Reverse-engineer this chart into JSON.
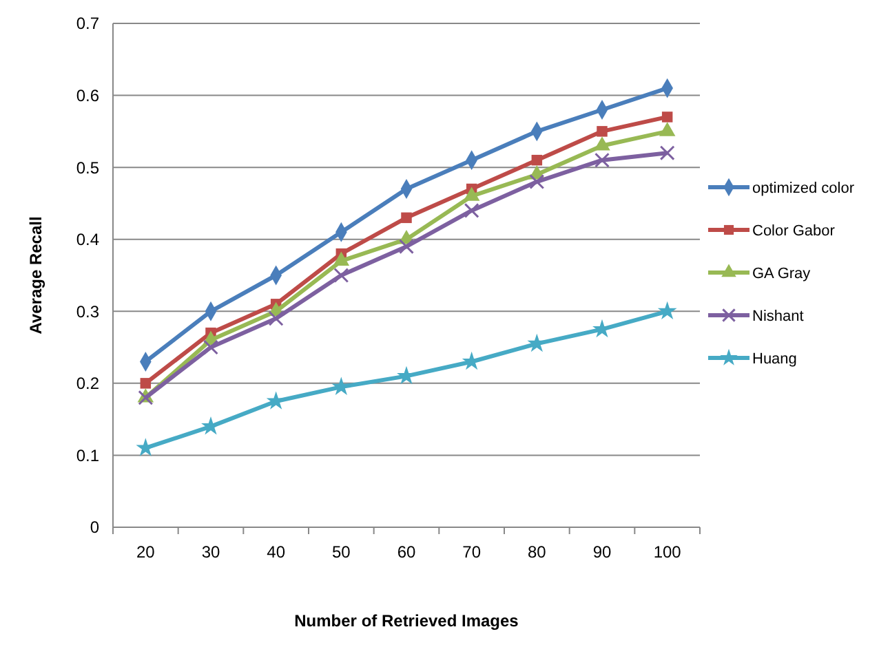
{
  "chart_data": {
    "type": "line",
    "xlabel": "Number of Retrieved Images",
    "ylabel": "Average Recall",
    "categories": [
      "20",
      "30",
      "40",
      "50",
      "60",
      "70",
      "80",
      "90",
      "100"
    ],
    "ylim": [
      0,
      0.7
    ],
    "yticks": [
      0,
      0.1,
      0.2,
      0.3,
      0.4,
      0.5,
      0.6,
      0.7
    ],
    "grid": "y",
    "legend": "right",
    "series": [
      {
        "name": "optimized color",
        "color": "#4a7ebb",
        "marker": "diamond",
        "values": [
          0.23,
          0.3,
          0.35,
          0.41,
          0.47,
          0.51,
          0.55,
          0.58,
          0.61
        ]
      },
      {
        "name": "Color Gabor",
        "color": "#be4b48",
        "marker": "square",
        "values": [
          0.2,
          0.27,
          0.31,
          0.38,
          0.43,
          0.47,
          0.51,
          0.55,
          0.57
        ]
      },
      {
        "name": "GA Gray",
        "color": "#98b954",
        "marker": "triangle",
        "values": [
          0.18,
          0.26,
          0.3,
          0.37,
          0.4,
          0.46,
          0.49,
          0.53,
          0.55
        ]
      },
      {
        "name": "Nishant",
        "color": "#7d60a0",
        "marker": "cross",
        "values": [
          0.18,
          0.25,
          0.29,
          0.35,
          0.39,
          0.44,
          0.48,
          0.51,
          0.52
        ]
      },
      {
        "name": "Huang",
        "color": "#46aac5",
        "marker": "star",
        "values": [
          0.11,
          0.14,
          0.175,
          0.195,
          0.21,
          0.23,
          0.255,
          0.275,
          0.3
        ]
      }
    ]
  }
}
